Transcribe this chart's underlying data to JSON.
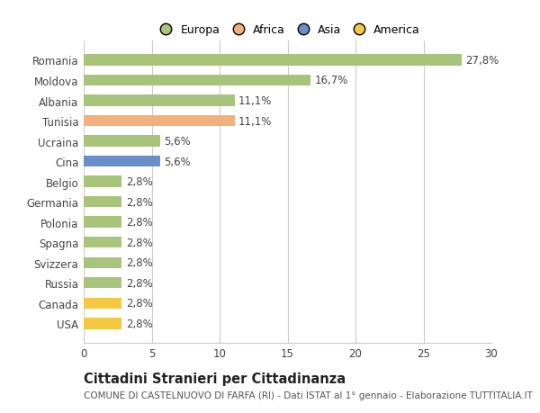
{
  "countries": [
    "Romania",
    "Moldova",
    "Albania",
    "Tunisia",
    "Ucraina",
    "Cina",
    "Belgio",
    "Germania",
    "Polonia",
    "Spagna",
    "Svizzera",
    "Russia",
    "Canada",
    "USA"
  ],
  "values": [
    27.8,
    16.7,
    11.1,
    11.1,
    5.6,
    5.6,
    2.8,
    2.8,
    2.8,
    2.8,
    2.8,
    2.8,
    2.8,
    2.8
  ],
  "labels": [
    "27,8%",
    "16,7%",
    "11,1%",
    "11,1%",
    "5,6%",
    "5,6%",
    "2,8%",
    "2,8%",
    "2,8%",
    "2,8%",
    "2,8%",
    "2,8%",
    "2,8%",
    "2,8%"
  ],
  "continents": [
    "Europa",
    "Europa",
    "Europa",
    "Africa",
    "Europa",
    "Asia",
    "Europa",
    "Europa",
    "Europa",
    "Europa",
    "Europa",
    "Europa",
    "America",
    "America"
  ],
  "colors": {
    "Europa": "#a8c47a",
    "Africa": "#f4b07a",
    "Asia": "#6a8fc8",
    "America": "#f5c842"
  },
  "legend_order": [
    "Europa",
    "Africa",
    "Asia",
    "America"
  ],
  "xlim": [
    0,
    30
  ],
  "xticks": [
    0,
    5,
    10,
    15,
    20,
    25,
    30
  ],
  "title": "Cittadini Stranieri per Cittadinanza",
  "subtitle": "COMUNE DI CASTELNUOVO DI FARFA (RI) - Dati ISTAT al 1° gennaio - Elaborazione TUTTITALIA.IT",
  "background_color": "#ffffff",
  "grid_color": "#cccccc",
  "bar_height": 0.55,
  "label_fontsize": 8.5,
  "tick_fontsize": 8.5,
  "title_fontsize": 10.5,
  "subtitle_fontsize": 7.5
}
